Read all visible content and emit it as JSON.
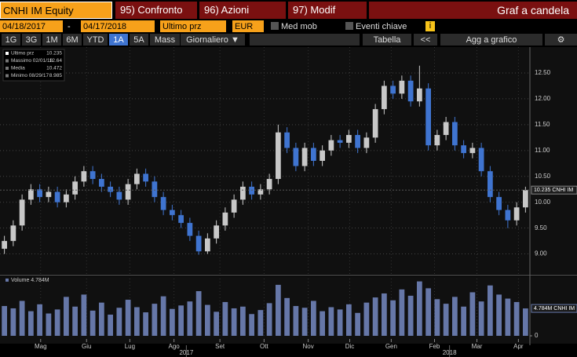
{
  "toolbar": {
    "ticker": "CNHI IM Equity",
    "buttons": [
      "95) Confronto",
      "96) Azioni",
      "97) Modif"
    ],
    "chart_kind": "Graf a candela",
    "date_from": "04/18/2017",
    "date_sep": "-",
    "date_to": "04/17/2018",
    "field": "Ultimo prz",
    "currency": "EUR",
    "moving_avg": "Med mob",
    "key_events": "Eventi chiave",
    "info": "i",
    "periods": [
      "1G",
      "3G",
      "1M",
      "6M",
      "YTD",
      "1A",
      "5A",
      "Mass"
    ],
    "active_period": "1A",
    "frequency": "Giornaliero ▼",
    "table": "Tabella",
    "collapse": "<<",
    "add": "Agg a grafico"
  },
  "chart_data": {
    "type": "candlestick",
    "legend": [
      {
        "label": "Ultimo prz",
        "value": 10.235
      },
      {
        "label": "Massimo 02/01/18",
        "value": 12.64
      },
      {
        "label": "Media",
        "value": 10.472
      },
      {
        "label": "Minimo 08/29/17",
        "value": 8.985
      }
    ],
    "last_label": "10.235 CNHI IM",
    "up_color": "#c8c8c8",
    "down_color": "#3f74d0",
    "volume_color": "#6677a8",
    "x": [
      0,
      1,
      2,
      3,
      4,
      5,
      6,
      7,
      8,
      9,
      10,
      11,
      12,
      13,
      14,
      15,
      16,
      17,
      18,
      19,
      20,
      21,
      22,
      23,
      24,
      25,
      26,
      27,
      28,
      29,
      30,
      31,
      32,
      33,
      34,
      35,
      36,
      37,
      38,
      39,
      40,
      41,
      42,
      43,
      44,
      45,
      46,
      47,
      48,
      49,
      50,
      51,
      52,
      53,
      54,
      55,
      56,
      57,
      58,
      59
    ],
    "open": [
      9.1,
      9.25,
      9.55,
      10.05,
      10.25,
      10.1,
      10.2,
      10.0,
      10.15,
      10.4,
      10.6,
      10.45,
      10.3,
      10.2,
      10.05,
      10.35,
      10.55,
      10.4,
      10.1,
      9.85,
      9.75,
      9.6,
      9.35,
      9.05,
      9.3,
      9.55,
      9.8,
      10.05,
      10.3,
      10.15,
      10.25,
      10.45,
      11.35,
      11.05,
      10.7,
      11.05,
      10.8,
      11.0,
      11.2,
      11.15,
      11.3,
      11.05,
      11.25,
      11.8,
      12.25,
      12.1,
      12.35,
      11.95,
      12.2,
      11.1,
      11.3,
      11.55,
      11.1,
      10.95,
      11.05,
      10.6,
      10.1,
      9.85,
      9.65,
      9.9
    ],
    "high": [
      9.35,
      9.65,
      10.15,
      10.35,
      10.35,
      10.3,
      10.3,
      10.25,
      10.5,
      10.7,
      10.7,
      10.55,
      10.4,
      10.3,
      10.45,
      10.65,
      10.65,
      10.5,
      10.2,
      9.95,
      9.85,
      9.7,
      9.45,
      9.4,
      9.65,
      9.9,
      10.15,
      10.4,
      10.4,
      10.35,
      10.55,
      11.5,
      11.45,
      11.15,
      11.15,
      11.15,
      11.1,
      11.3,
      11.3,
      11.4,
      11.4,
      11.35,
      11.9,
      12.35,
      12.35,
      12.45,
      12.45,
      12.64,
      12.3,
      11.4,
      11.65,
      11.65,
      11.2,
      11.15,
      11.15,
      10.7,
      10.2,
      9.95,
      10.0,
      10.3
    ],
    "low": [
      9.0,
      9.15,
      9.45,
      9.95,
      10.0,
      10.0,
      9.9,
      9.9,
      10.05,
      10.3,
      10.35,
      10.2,
      10.1,
      9.95,
      9.95,
      10.25,
      10.3,
      10.0,
      9.75,
      9.65,
      9.5,
      9.25,
      8.985,
      9.0,
      9.2,
      9.45,
      9.7,
      9.95,
      10.05,
      10.05,
      10.15,
      10.35,
      10.95,
      10.6,
      10.6,
      10.7,
      10.7,
      10.9,
      11.05,
      11.05,
      10.95,
      10.95,
      11.15,
      11.7,
      12.0,
      12.0,
      11.85,
      11.85,
      11.0,
      11.0,
      11.2,
      11.0,
      10.85,
      10.85,
      10.5,
      10.0,
      9.75,
      9.5,
      9.55,
      9.8
    ],
    "close": [
      9.25,
      9.55,
      10.05,
      10.25,
      10.1,
      10.2,
      10.0,
      10.15,
      10.4,
      10.6,
      10.45,
      10.3,
      10.2,
      10.05,
      10.35,
      10.55,
      10.4,
      10.1,
      9.85,
      9.75,
      9.6,
      9.35,
      9.05,
      9.3,
      9.55,
      9.8,
      10.05,
      10.3,
      10.15,
      10.25,
      10.45,
      11.35,
      11.05,
      10.7,
      11.05,
      10.8,
      11.0,
      11.2,
      11.15,
      11.3,
      11.05,
      11.25,
      11.8,
      12.25,
      12.1,
      12.35,
      11.95,
      12.2,
      11.1,
      11.3,
      11.55,
      11.1,
      10.95,
      11.05,
      10.6,
      10.1,
      9.85,
      9.65,
      9.9,
      10.235
    ],
    "xlim": [
      -0.5,
      59.5
    ],
    "ylim": [
      8.6,
      13.0
    ],
    "yticks": [
      {
        "value": 9,
        "label": "9.00"
      },
      {
        "value": 9.5,
        "label": "9.50"
      },
      {
        "value": 10,
        "label": "10.00"
      },
      {
        "value": 10.5,
        "label": "10.50"
      },
      {
        "value": 11,
        "label": "11.00"
      },
      {
        "value": 11.5,
        "label": "11.50"
      },
      {
        "value": 12,
        "label": "12.00"
      },
      {
        "value": 12.5,
        "label": "12.50"
      }
    ],
    "xticks": [
      {
        "value": 4.1,
        "label": "Mag"
      },
      {
        "value": 9.3,
        "label": "Giu"
      },
      {
        "value": 14.2,
        "label": "Lug"
      },
      {
        "value": 19.2,
        "label": "Ago"
      },
      {
        "value": 24.4,
        "label": "Set"
      },
      {
        "value": 29.4,
        "label": "Ott"
      },
      {
        "value": 34.4,
        "label": "Nov"
      },
      {
        "value": 39.1,
        "label": "Dic"
      },
      {
        "value": 43.8,
        "label": "Gen"
      },
      {
        "value": 48.7,
        "label": "Feb"
      },
      {
        "value": 53.5,
        "label": "Mar"
      },
      {
        "value": 58.2,
        "label": "Apr"
      }
    ],
    "year_ticks": [
      {
        "value": 20.6,
        "label": "2017"
      },
      {
        "value": 50.4,
        "label": "2018"
      }
    ],
    "volume_title": "Volume 4.784M",
    "volume_label": "4.784M CNHI IM",
    "volume": [
      5.2,
      4.8,
      6.1,
      4.3,
      5.5,
      3.9,
      4.6,
      6.8,
      5.1,
      7.2,
      4.4,
      5.8,
      3.7,
      4.9,
      6.3,
      5.0,
      4.1,
      5.6,
      6.9,
      4.7,
      5.3,
      6.0,
      7.8,
      5.4,
      4.2,
      5.9,
      4.8,
      5.1,
      3.8,
      4.5,
      5.7,
      8.9,
      6.6,
      5.2,
      4.9,
      6.1,
      4.3,
      5.0,
      4.6,
      5.5,
      4.0,
      5.8,
      6.7,
      7.4,
      6.2,
      8.1,
      7.0,
      9.5,
      8.3,
      6.4,
      5.6,
      6.8,
      5.1,
      7.6,
      6.0,
      8.8,
      7.2,
      6.5,
      5.9,
      4.784
    ],
    "vlim": [
      0,
      10
    ],
    "vticks": [
      0
    ],
    "grid": true
  }
}
